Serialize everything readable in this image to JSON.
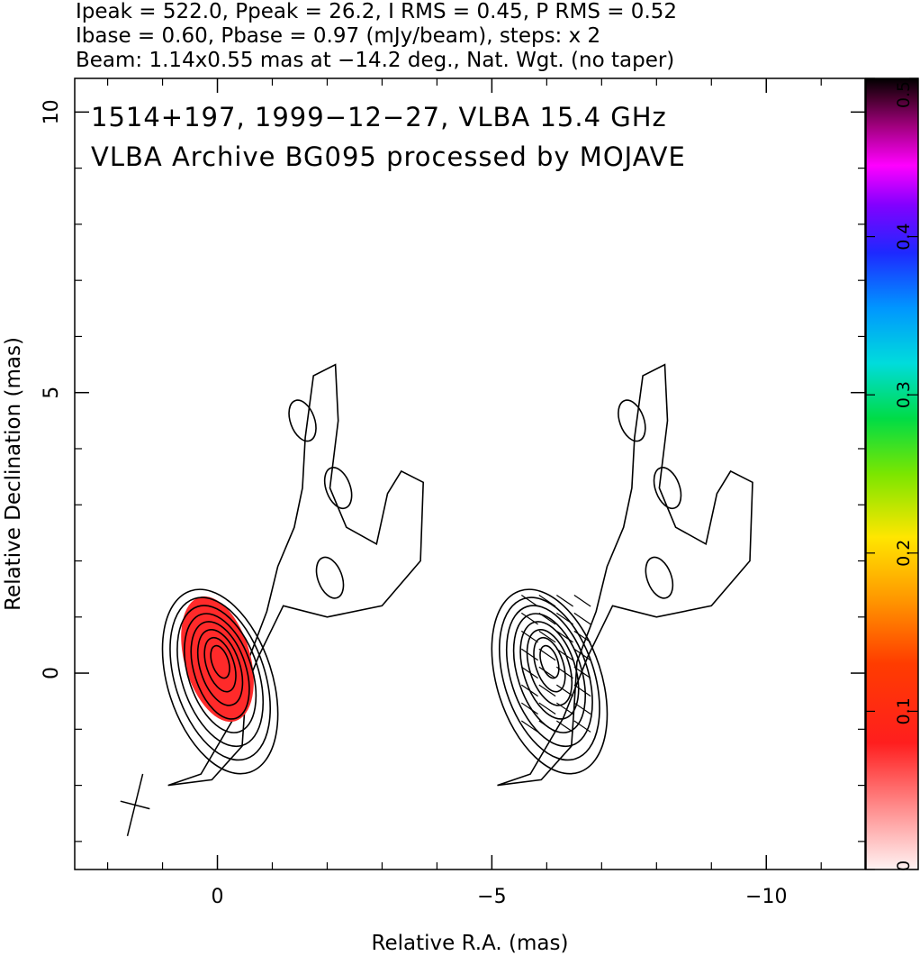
{
  "header": {
    "line1": "Ipeak = 522.0, Ppeak = 26.2, I RMS = 0.45, P RMS = 0.52",
    "line2": "Ibase = 0.60, Pbase = 0.97 (mJy/beam), steps: x 2",
    "line3": "Beam: 1.14x0.55 mas at −14.2 deg., Nat. Wgt. (no taper)"
  },
  "labels": {
    "source": "1514+197, 1999−12−27, VLBA 15.4 GHz",
    "archive": "VLBA Archive BG095 processed by MOJAVE"
  },
  "chart_data": {
    "type": "heatmap",
    "title": "",
    "xlabel": "Relative R.A. (mas)",
    "ylabel": "Relative Declination (mas)",
    "xlim": [
      2.6,
      -11.8
    ],
    "ylim": [
      -3.5,
      10.6
    ],
    "x_ticks": [
      0,
      -5,
      -10
    ],
    "x_tick_labels": [
      "0",
      "−5",
      "−10"
    ],
    "y_ticks": [
      0,
      5,
      10
    ],
    "y_tick_labels": [
      "0",
      "5",
      "10"
    ],
    "beam": {
      "major_mas": 1.14,
      "minor_mas": 0.55,
      "pa_deg": -14.2
    },
    "contour_scale": "x 2",
    "panels": [
      {
        "name": "total intensity contours with fractional polarization color",
        "x_offset_mas": 0
      },
      {
        "name": "total intensity contours with polarization vectors",
        "x_offset_mas": -6
      }
    ],
    "core": {
      "x": -0.05,
      "y": 0.25
    },
    "jet_knots": [
      {
        "x": -1.55,
        "y": 4.5
      },
      {
        "x": -2.2,
        "y": 3.3
      },
      {
        "x": -2.05,
        "y": 1.7
      }
    ],
    "colorbar": {
      "min": 0,
      "max": 0.5,
      "ticks": [
        0,
        0.1,
        0.2,
        0.3,
        0.4,
        0.5
      ],
      "tick_labels": [
        "0",
        "0.1",
        "0.2",
        "0.3",
        "0.4",
        "0.5"
      ]
    },
    "colors": {
      "frac_pol_fill": "#ff2a2a",
      "contour": "#000000"
    }
  }
}
